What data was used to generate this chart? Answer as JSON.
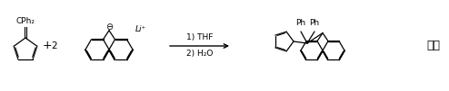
{
  "background_color": "#ffffff",
  "text_color": "#000000",
  "figsize": [
    4.94,
    1.01
  ],
  "dpi": 100,
  "reagent1_label": "CPh₂",
  "plus_label": "+",
  "coeff_label": "2",
  "li_label": "Li⁺",
  "arrow_label1": "1) THF",
  "arrow_label2": "2) H₂O",
  "ph_label": "Ph",
  "final_label": "配体",
  "neg_label": "⊖"
}
